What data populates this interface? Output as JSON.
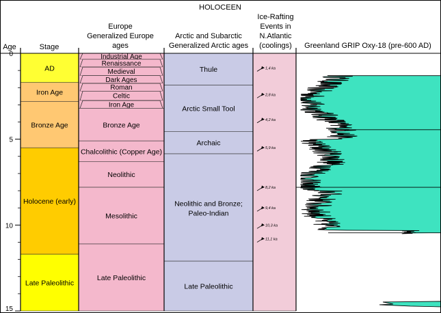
{
  "title": "HOLOCEEN",
  "headers": {
    "age": "Age",
    "stage": "Stage",
    "europe": [
      "Europe",
      "Generalized Europe",
      "ages"
    ],
    "arctic": [
      "Arctic and Subarctic",
      "Generalized Arctic ages"
    ],
    "ice": [
      "Ice-Rafting",
      "Events in",
      "N.Atlantic",
      "(coolings)"
    ],
    "grip": "Greenland GRIP Oxy-18 (pre-600 AD)"
  },
  "age_ticks": [
    "0",
    "5",
    "10",
    "15"
  ],
  "stage_units": [
    {
      "label": "AD",
      "from": 0,
      "to": 1.7,
      "color": "#ffff33"
    },
    {
      "label": "Iron Age",
      "from": 1.7,
      "to": 2.8,
      "color": "#ffc872"
    },
    {
      "label": "Bronze Age",
      "from": 2.8,
      "to": 5.5,
      "color": "#ffc872"
    },
    {
      "label": "Holocene (early)",
      "from": 5.5,
      "to": 11.7,
      "color": "#ffcc00"
    },
    {
      "label": "Late Paleolithic",
      "from": 11.7,
      "to": 15,
      "color": "#ffff00"
    }
  ],
  "europe_units": [
    {
      "label": "Industrial Age",
      "from": 0,
      "to": 0.35
    },
    {
      "label": "Renaissance",
      "from": 0.35,
      "to": 0.8
    },
    {
      "label": "Medieval",
      "from": 0.8,
      "to": 1.3
    },
    {
      "label": "Dark Ages",
      "from": 1.3,
      "to": 1.75
    },
    {
      "label": "Roman",
      "from": 1.75,
      "to": 2.2
    },
    {
      "label": "Celtic",
      "from": 2.2,
      "to": 2.75
    },
    {
      "label": "Iron Age",
      "from": 2.75,
      "to": 3.2
    },
    {
      "label": "Bronze Age",
      "from": 3.2,
      "to": 5.1
    },
    {
      "label": "Chalcolithic (Copper Age)",
      "from": 5.1,
      "to": 6.3
    },
    {
      "label": "Neolithic",
      "from": 6.3,
      "to": 7.8
    },
    {
      "label": "Mesolithic",
      "from": 7.8,
      "to": 11.1
    },
    {
      "label": "Late Paleolithic",
      "from": 11.1,
      "to": 15
    }
  ],
  "arctic_units": [
    {
      "label": "Thule",
      "from": 0,
      "to": 1.85
    },
    {
      "label": "Arctic Small Tool",
      "from": 1.85,
      "to": 4.55
    },
    {
      "label": "Archaic",
      "from": 4.55,
      "to": 5.85
    },
    {
      "label": "Neolithic and Bronze; Paleo-Indian",
      "from": 5.85,
      "to": 12.1
    },
    {
      "label": "Late Paleolithic",
      "from": 12.1,
      "to": 15
    }
  ],
  "ice_events": [
    {
      "label": "1,4 ka",
      "age": 0.85
    },
    {
      "label": "2,8 ka",
      "age": 2.4
    },
    {
      "label": "4,2 ka",
      "age": 3.85
    },
    {
      "label": "5,9 ka",
      "age": 5.5
    },
    {
      "label": "8,2 ka",
      "age": 7.8
    },
    {
      "label": "9,4 ka",
      "age": 9.0
    },
    {
      "label": "10,3 ka",
      "age": 10.0
    },
    {
      "label": "11,1 ka",
      "age": 10.8
    }
  ],
  "colors": {
    "europe_fill": "#f4b8cc",
    "arctic_fill": "#c9cbe6",
    "ice_fill": "#f2ccd9",
    "grip_fill": "#3ee3c0",
    "border": "#000000"
  }
}
